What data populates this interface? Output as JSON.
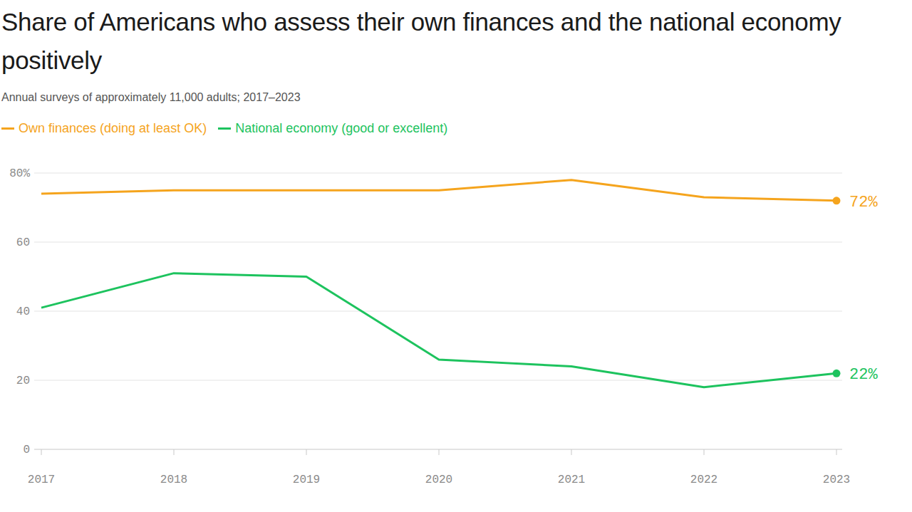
{
  "chart_data": {
    "type": "line",
    "title": "Share of Americans who assess their own finances and the national economy positively",
    "subtitle": "Annual surveys of approximately 11,000 adults; 2017–2023",
    "categories": [
      "2017",
      "2018",
      "2019",
      "2020",
      "2021",
      "2022",
      "2023"
    ],
    "series": [
      {
        "name": "Own finances (doing at least OK)",
        "color": "#f5a41d",
        "values": [
          74,
          75,
          75,
          75,
          78,
          73,
          72
        ],
        "value_labels": [
          null,
          null,
          null,
          null,
          null,
          null,
          "72%"
        ]
      },
      {
        "name": "National economy (good or excellent)",
        "color": "#1dc35e",
        "values": [
          41,
          51,
          50,
          26,
          24,
          18,
          22
        ],
        "value_labels": [
          null,
          null,
          null,
          null,
          null,
          null,
          "22%"
        ]
      }
    ],
    "ylim": [
      0,
      80
    ],
    "yticks": [
      0,
      20,
      40,
      60,
      {
        "value": 80,
        "label": "80%"
      }
    ],
    "grid": true,
    "legend": "top-left"
  }
}
